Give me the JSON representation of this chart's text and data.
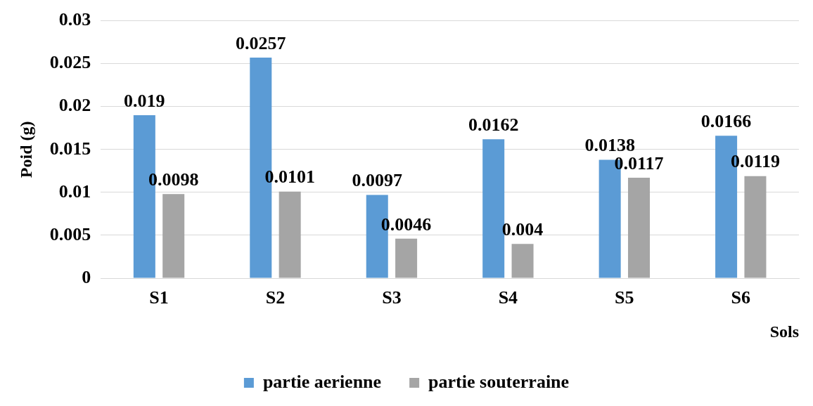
{
  "chart_data": {
    "type": "bar",
    "xlabel": "Sols",
    "ylabel": "Poid (g)",
    "categories": [
      "S1",
      "S2",
      "S3",
      "S4",
      "S5",
      "S6"
    ],
    "series": [
      {
        "name": "partie aerienne",
        "color": "#5b9bd5",
        "values": [
          0.019,
          0.0257,
          0.0097,
          0.0162,
          0.0138,
          0.0166
        ]
      },
      {
        "name": "partie souterraine",
        "color": "#a5a5a5",
        "values": [
          0.0098,
          0.0101,
          0.0046,
          0.004,
          0.0117,
          0.0119
        ]
      }
    ],
    "ylim": [
      0,
      0.03
    ],
    "yticks": [
      0,
      0.005,
      0.01,
      0.015,
      0.02,
      0.025,
      0.03
    ],
    "grid": "y",
    "legend": "bottom",
    "data_labels": true
  }
}
